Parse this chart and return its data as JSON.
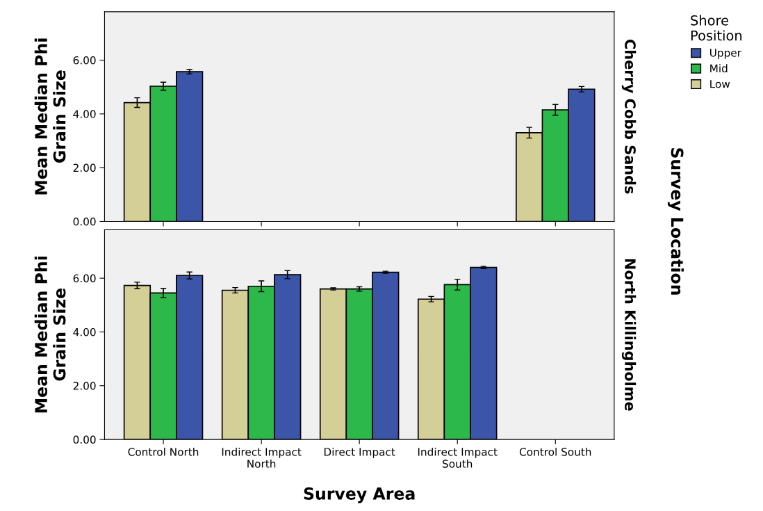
{
  "chart_data": [
    {
      "type": "bar",
      "ylabel": "Mean Median Phi\nGrain Size",
      "legend_title": "Shore\nPosition",
      "legend": "right",
      "tick_labels": "y",
      "grid": false,
      "categories": [
        null,
        null,
        null,
        null,
        null
      ],
      "ylim": [
        0,
        7.8
      ],
      "yticks": [
        {
          "value": 0,
          "label": "0.00"
        },
        {
          "value": 2,
          "label": "2.00"
        },
        {
          "value": 4,
          "label": "4.00"
        },
        {
          "value": 6,
          "label": "6.00"
        }
      ],
      "series": [
        {
          "name": "Low",
          "color": "#d4cf97",
          "values": [
            4.42,
            null,
            null,
            null,
            3.3
          ],
          "errors": [
            0.18,
            null,
            null,
            null,
            0.2
          ]
        },
        {
          "name": "Mid",
          "color": "#2db84a",
          "values": [
            5.03,
            null,
            null,
            null,
            4.15
          ],
          "errors": [
            0.15,
            null,
            null,
            null,
            0.2
          ]
        },
        {
          "name": "Upper",
          "color": "#3b56a8",
          "values": [
            5.57,
            null,
            null,
            null,
            4.92
          ],
          "errors": [
            0.08,
            null,
            null,
            null,
            0.1
          ]
        }
      ],
      "annotations": [
        "Cherry Cobb Sands",
        "Survey Location"
      ]
    },
    {
      "type": "bar",
      "ylabel": "Mean Median Phi\nGrain Size",
      "xlabel": "Survey Area",
      "grid": false,
      "categories": [
        "Control North",
        "Indirect Impact\nNorth",
        "Direct Impact",
        "Indirect Impact\nSouth",
        "Control South"
      ],
      "ylim": [
        0,
        7.8
      ],
      "yticks": [
        {
          "value": 0,
          "label": "0.00"
        },
        {
          "value": 2,
          "label": "2.00"
        },
        {
          "value": 4,
          "label": "4.00"
        },
        {
          "value": 6,
          "label": "6.00"
        }
      ],
      "series": [
        {
          "color": "#d4cf97",
          "values": [
            5.73,
            5.55,
            5.6,
            5.22,
            null
          ],
          "errors": [
            0.12,
            0.1,
            0.04,
            0.1,
            null
          ]
        },
        {
          "color": "#2db84a",
          "values": [
            5.45,
            5.7,
            5.6,
            5.76,
            null
          ],
          "errors": [
            0.17,
            0.2,
            0.08,
            0.2,
            null
          ]
        },
        {
          "color": "#3b56a8",
          "values": [
            6.1,
            6.13,
            6.22,
            6.4,
            null
          ],
          "errors": [
            0.13,
            0.15,
            0.04,
            0.04,
            null
          ]
        }
      ],
      "annotations": [
        "North Killingholme"
      ]
    }
  ]
}
